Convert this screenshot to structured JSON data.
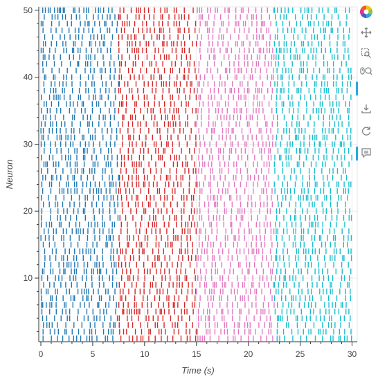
{
  "chart_data": {
    "type": "scatter",
    "title": "",
    "xlabel": "Time (s)",
    "ylabel": "Neuron",
    "xlim": [
      -0.2,
      30.5
    ],
    "ylim": [
      0.5,
      50.5
    ],
    "x_ticks": [
      0,
      5,
      10,
      15,
      20,
      25,
      30
    ],
    "y_ticks": [
      10,
      20,
      30,
      40,
      50
    ],
    "grid": true,
    "legend": "none",
    "neurons": 50,
    "series": [
      {
        "color": "#1f77b4",
        "time_range": [
          0,
          7.5
        ]
      },
      {
        "color": "#d62728",
        "time_range": [
          7.5,
          15
        ]
      },
      {
        "color": "#e377c2",
        "time_range": [
          15,
          22.5
        ]
      },
      {
        "color": "#17becf",
        "time_range": [
          22.5,
          30
        ]
      }
    ]
  },
  "toolbar": {
    "tools": [
      "bokeh-logo",
      "pan-icon",
      "box-zoom-icon",
      "wheel-zoom-icon",
      "save-icon",
      "reset-icon",
      "hover-icon"
    ]
  }
}
